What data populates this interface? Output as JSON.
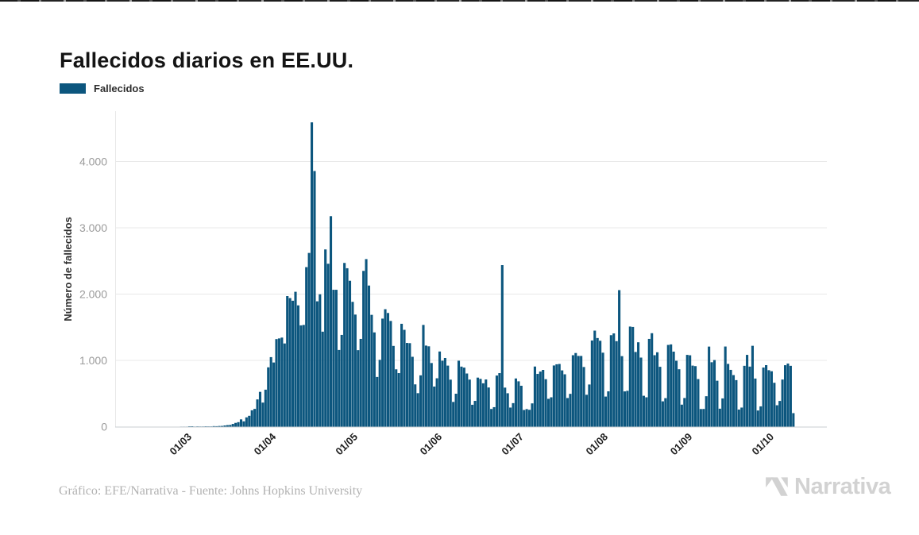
{
  "header": {
    "title": "Fallecidos diarios en EE.UU."
  },
  "legend": {
    "label": "Fallecidos",
    "swatch_color": "#0c567e"
  },
  "footer": {
    "credit": "Gráfico: EFE/Narrativa - Fuente: Johns Hopkins University",
    "brand": "Narrativa"
  },
  "colors": {
    "bar": "#0c567e",
    "grid": "#e8e8e8",
    "axis_line": "#c9ced2",
    "ytick_text": "#9b9b9b",
    "xtick_text": "#1f1f1f",
    "brand_gray": "#d2d2d2"
  },
  "chart_data": {
    "type": "bar",
    "title": "Fallecidos diarios en EE.UU.",
    "series_name": "Fallecidos",
    "xlabel": "",
    "ylabel": "Número de fallecidos",
    "ylim": [
      0,
      4750
    ],
    "grid": "horizontal-only",
    "legend_position": "top-left",
    "x_start": "26/02",
    "x_frequency": "daily",
    "yticks": [
      {
        "label": "0",
        "value": 0
      },
      {
        "label": "1.000",
        "value": 1000
      },
      {
        "label": "2.000",
        "value": 2000
      },
      {
        "label": "3.000",
        "value": 3000
      },
      {
        "label": "4.000",
        "value": 4000
      }
    ],
    "xticks": [
      {
        "label": "01/03",
        "index": 4
      },
      {
        "label": "01/04",
        "index": 35
      },
      {
        "label": "01/05",
        "index": 65
      },
      {
        "label": "01/06",
        "index": 96
      },
      {
        "label": "01/07",
        "index": 126
      },
      {
        "label": "01/08",
        "index": 157
      },
      {
        "label": "01/09",
        "index": 188
      },
      {
        "label": "01/10",
        "index": 218
      }
    ],
    "values": [
      0,
      0,
      1,
      1,
      1,
      5,
      6,
      2,
      4,
      3,
      3,
      5,
      4,
      4,
      8,
      7,
      10,
      11,
      18,
      23,
      26,
      41,
      57,
      68,
      110,
      80,
      140,
      164,
      247,
      268,
      411,
      525,
      363,
      558,
      895,
      1049,
      968,
      1321,
      1331,
      1344,
      1255,
      1970,
      1940,
      1900,
      2035,
      1830,
      1528,
      1535,
      2407,
      2621,
      4591,
      3857,
      1891,
      1997,
      1433,
      2674,
      2458,
      3176,
      2065,
      2065,
      1157,
      1384,
      2470,
      2390,
      2201,
      1883,
      1691,
      1154,
      1324,
      2350,
      2528,
      2129,
      1687,
      1422,
      750,
      1008,
      1630,
      1772,
      1715,
      1595,
      1218,
      865,
      808,
      1552,
      1461,
      1263,
      1260,
      1054,
      638,
      505,
      774,
      1535,
      1223,
      1212,
      960,
      605,
      730,
      1134,
      995,
      1036,
      921,
      709,
      373,
      497,
      995,
      906,
      891,
      802,
      710,
      330,
      389,
      740,
      721,
      654,
      712,
      591,
      267,
      294,
      771,
      808,
      2437,
      589,
      504,
      288,
      355,
      727,
      684,
      617,
      252,
      265,
      254,
      351,
      907,
      796,
      831,
      856,
      716,
      420,
      443,
      923,
      941,
      946,
      849,
      790,
      432,
      495,
      1078,
      1111,
      1067,
      1067,
      900,
      481,
      636,
      1300,
      1449,
      1337,
      1296,
      1116,
      454,
      533,
      1380,
      1407,
      1290,
      2060,
      1064,
      532,
      541,
      1510,
      1504,
      1127,
      1273,
      1042,
      466,
      443,
      1324,
      1410,
      1078,
      1122,
      903,
      382,
      430,
      1233,
      1241,
      1132,
      994,
      866,
      332,
      432,
      1083,
      1077,
      921,
      913,
      718,
      266,
      267,
      459,
      1208,
      972,
      1005,
      693,
      271,
      426,
      1209,
      947,
      857,
      778,
      702,
      258,
      288,
      918,
      1083,
      906,
      1220,
      726,
      244,
      306,
      892,
      928,
      852,
      836,
      662,
      323,
      388,
      711,
      927,
      952,
      918,
      204
    ]
  }
}
